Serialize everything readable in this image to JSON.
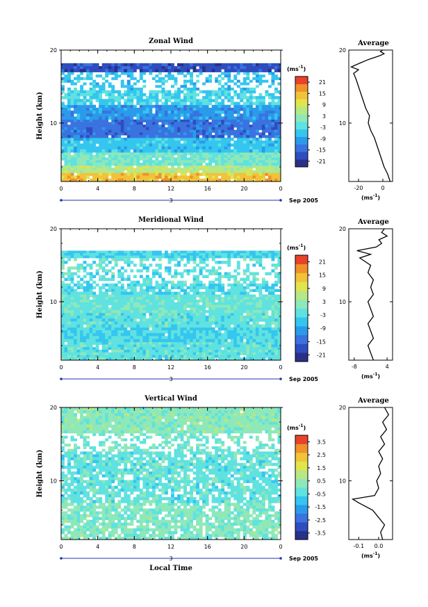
{
  "chart_data": [
    {
      "type": "heatmap",
      "title": "Zonal Wind",
      "ylabel": "Height (km)",
      "ylim": [
        2,
        20
      ],
      "yticks": [
        20,
        10
      ],
      "xticks": [
        "0",
        "4",
        "8",
        "12",
        "16",
        "20",
        "0"
      ],
      "date_marker": "3",
      "date_label": "Sep 2005",
      "colorbar": {
        "unit_label": "(ms",
        "unit_exp": "-1",
        "unit_close": ")",
        "ticks": [
          "21",
          "15",
          "9",
          "3",
          "-3",
          "-9",
          "-15",
          "-21"
        ],
        "range": [
          -24,
          24
        ]
      },
      "field": {
        "layers": [
          {
            "from": 2.0,
            "to": 3.2,
            "value": 14
          },
          {
            "from": 3.2,
            "to": 4.2,
            "value": 6
          },
          {
            "from": 4.2,
            "to": 6.0,
            "value": 0
          },
          {
            "from": 6.0,
            "to": 8.0,
            "value": -6
          },
          {
            "from": 8.0,
            "to": 10.5,
            "value": -14
          },
          {
            "from": 10.5,
            "to": 12.5,
            "value": -10
          },
          {
            "from": 12.5,
            "to": 14.5,
            "value": -4,
            "sparse": true
          },
          {
            "from": 14.5,
            "to": 17.0,
            "value": -6,
            "sparse": true,
            "very_sparse": true
          },
          {
            "from": 17.0,
            "to": 18.2,
            "value": -18
          },
          {
            "from": 18.2,
            "to": 20.0,
            "value": null
          }
        ]
      },
      "average": {
        "title": "Average",
        "xticks": [
          "-20",
          "0"
        ],
        "xlim": [
          -28,
          8
        ],
        "xlabel": "(ms",
        "xlabel_exp": "-1",
        "xlabel_close": ")",
        "yticks": [
          20,
          10
        ],
        "profile": [
          [
            2.0,
            6
          ],
          [
            3.0,
            4
          ],
          [
            4.0,
            1
          ],
          [
            5.0,
            -1
          ],
          [
            6.0,
            -3
          ],
          [
            7.0,
            -5
          ],
          [
            8.0,
            -7
          ],
          [
            9.0,
            -10
          ],
          [
            10.0,
            -12
          ],
          [
            11.0,
            -11
          ],
          [
            12.0,
            -14
          ],
          [
            13.0,
            -16
          ],
          [
            14.0,
            -18
          ],
          [
            15.0,
            -20
          ],
          [
            16.0,
            -22
          ],
          [
            16.8,
            -24
          ],
          [
            17.3,
            -20
          ],
          [
            17.7,
            -26
          ],
          [
            18.2,
            -19
          ],
          [
            18.7,
            -12
          ],
          [
            19.2,
            -3
          ],
          [
            19.5,
            1
          ],
          [
            19.8,
            -2
          ],
          [
            20.0,
            0
          ]
        ]
      }
    },
    {
      "type": "heatmap",
      "title": "Meridional Wind",
      "ylabel": "Height (km)",
      "ylim": [
        2,
        20
      ],
      "yticks": [
        20,
        10
      ],
      "xticks": [
        "0",
        "4",
        "8",
        "12",
        "16",
        "20",
        "0"
      ],
      "date_marker": "3",
      "date_label": "Sep 2005",
      "colorbar": {
        "unit_label": "(ms",
        "unit_exp": "-1",
        "unit_close": ")",
        "ticks": [
          "21",
          "15",
          "9",
          "3",
          "-3",
          "-9",
          "-15",
          "-21"
        ],
        "range": [
          -24,
          24
        ]
      },
      "field": {
        "layers": [
          {
            "from": 2.0,
            "to": 4.5,
            "value": -2
          },
          {
            "from": 4.5,
            "to": 6.5,
            "value": -4
          },
          {
            "from": 6.5,
            "to": 8.5,
            "value": -2
          },
          {
            "from": 8.5,
            "to": 11.0,
            "value": -1
          },
          {
            "from": 11.0,
            "to": 12.5,
            "value": -3,
            "sparse": true
          },
          {
            "from": 12.5,
            "to": 16.0,
            "value": -2,
            "sparse": true,
            "very_sparse": true
          },
          {
            "from": 16.0,
            "to": 17.0,
            "value": -4
          },
          {
            "from": 17.0,
            "to": 20.0,
            "value": null
          }
        ]
      },
      "average": {
        "title": "Average",
        "xticks": [
          "-8",
          "4"
        ],
        "xlim": [
          -10,
          6
        ],
        "xlabel": "(ms",
        "xlabel_exp": "-1",
        "xlabel_close": ")",
        "yticks": [
          20,
          10
        ],
        "profile": [
          [
            2.0,
            -1
          ],
          [
            3.0,
            -2
          ],
          [
            4.0,
            -3
          ],
          [
            5.0,
            -1
          ],
          [
            6.0,
            -2
          ],
          [
            7.0,
            -3
          ],
          [
            8.0,
            -1
          ],
          [
            9.0,
            -2
          ],
          [
            10.0,
            -3
          ],
          [
            11.0,
            -1
          ],
          [
            12.0,
            -2
          ],
          [
            13.0,
            -1
          ],
          [
            14.0,
            -3
          ],
          [
            15.0,
            -2
          ],
          [
            16.0,
            -6
          ],
          [
            16.5,
            -2
          ],
          [
            17.0,
            -7
          ],
          [
            17.5,
            0
          ],
          [
            18.0,
            2
          ],
          [
            18.5,
            1
          ],
          [
            19.0,
            4
          ],
          [
            19.5,
            2
          ],
          [
            20.0,
            3
          ]
        ]
      }
    },
    {
      "type": "heatmap",
      "title": "Vertical Wind",
      "ylabel": "Height (km)",
      "xlabel": "Local Time",
      "ylim": [
        2,
        20
      ],
      "yticks": [
        20,
        10
      ],
      "xticks": [
        "0",
        "4",
        "8",
        "12",
        "16",
        "20",
        "0"
      ],
      "date_marker": "3",
      "date_label": "Sep 2005",
      "colorbar": {
        "unit_label": "(ms",
        "unit_exp": "-1",
        "unit_close": ")",
        "ticks": [
          "3.5",
          "2.5",
          "1.5",
          "0.5",
          "-0.5",
          "-1.5",
          "-2.5",
          "-3.5"
        ],
        "range": [
          -4,
          4
        ]
      },
      "field": {
        "layers": [
          {
            "from": 2.0,
            "to": 7.0,
            "value": 0.2,
            "sparse": true
          },
          {
            "from": 7.0,
            "to": 14.0,
            "value": -0.3,
            "sparse": true
          },
          {
            "from": 14.0,
            "to": 16.5,
            "value": 0.0,
            "sparse": true,
            "very_sparse": true
          },
          {
            "from": 16.5,
            "to": 20.0,
            "value": 0.3
          }
        ]
      },
      "average": {
        "title": "Average",
        "xticks": [
          "-0.1",
          "0.0"
        ],
        "xlim": [
          -0.15,
          0.07
        ],
        "xlabel": "(ms",
        "xlabel_exp": "-1",
        "xlabel_close": ")",
        "yticks": [
          20,
          10
        ],
        "profile": [
          [
            2.0,
            0.02
          ],
          [
            3.0,
            0.01
          ],
          [
            4.0,
            0.03
          ],
          [
            5.0,
            0.0
          ],
          [
            6.0,
            -0.03
          ],
          [
            7.0,
            -0.1
          ],
          [
            7.5,
            -0.13
          ],
          [
            8.0,
            -0.02
          ],
          [
            9.0,
            0.0
          ],
          [
            10.0,
            -0.01
          ],
          [
            11.0,
            0.01
          ],
          [
            12.0,
            0.0
          ],
          [
            13.0,
            0.02
          ],
          [
            14.0,
            0.0
          ],
          [
            15.0,
            0.03
          ],
          [
            16.0,
            0.01
          ],
          [
            17.0,
            0.04
          ],
          [
            18.0,
            0.02
          ],
          [
            19.0,
            0.05
          ],
          [
            20.0,
            0.03
          ]
        ]
      }
    }
  ]
}
